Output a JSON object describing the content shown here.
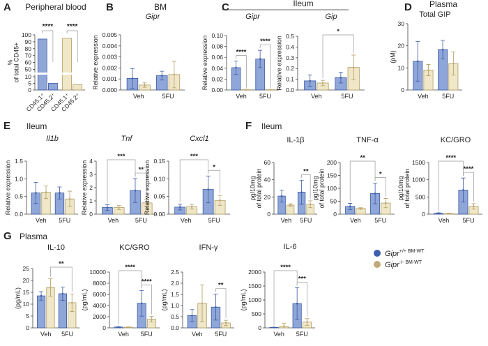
{
  "colors": {
    "wt_fill": "#8fa6d8",
    "wt_stroke": "#3b5aa3",
    "ko_fill": "#efe7c8",
    "ko_stroke": "#b19d62",
    "wt_dot": "#3f5fae",
    "ko_dot": "#bfa978"
  },
  "legend": [
    {
      "gene": "Gipr",
      "sup": "+/+",
      "suffix": " BM-WT",
      "color": "#3f5fae"
    },
    {
      "gene": "Gipr",
      "sup": "-/-",
      "suffix": " BM-WT",
      "color": "#bfa978"
    }
  ],
  "headings": [
    {
      "id": "A",
      "letter": "A",
      "text": "Peripheral blood"
    },
    {
      "id": "B",
      "letter": "B",
      "text": "BM"
    },
    {
      "id": "C",
      "letter": "C",
      "text": "Ileum"
    },
    {
      "id": "D",
      "letter": "D",
      "text": "Plasma"
    },
    {
      "id": "E",
      "letter": "E",
      "text": "Ileum"
    },
    {
      "id": "F",
      "letter": "F",
      "text": "Ileum"
    },
    {
      "id": "G",
      "letter": "G",
      "text": "Plasma"
    }
  ],
  "chart_data": [
    {
      "id": "A",
      "type": "bar",
      "title": "",
      "ylabel": "% of total CD45+",
      "ylim": [
        0,
        100
      ],
      "axis_break": [
        10,
        50
      ],
      "yticks": [
        0,
        5,
        10,
        50,
        60,
        70,
        80,
        90,
        100
      ],
      "categories": [
        "CD45.1⁺",
        "CD45.2⁺",
        "CD45.1⁺",
        "CD45.2⁺"
      ],
      "values": [
        94,
        5,
        95,
        4
      ],
      "groups": [
        "wt",
        "wt",
        "ko",
        "ko"
      ],
      "sig": [
        {
          "from": 0,
          "to": 1,
          "label": "****"
        },
        {
          "from": 2,
          "to": 3,
          "label": "****"
        }
      ]
    },
    {
      "id": "B",
      "type": "bar",
      "title": "Gipr",
      "italic": true,
      "ylabel": "Relative expression",
      "ylim": [
        0,
        0.005
      ],
      "yticks": [
        "0.000",
        "0.001",
        "0.002",
        "0.003",
        "0.004",
        "0.005"
      ],
      "categories": [
        "Veh",
        "5FU"
      ],
      "series": [
        {
          "name": "Gipr+/+ BM-WT",
          "values": [
            0.00105,
            0.0013
          ],
          "err": [
            0.0009,
            0.0004
          ]
        },
        {
          "name": "Gipr-/- BM-WT",
          "values": [
            0.00045,
            0.0014
          ],
          "err": [
            0.0002,
            0.0012
          ]
        }
      ],
      "sig": []
    },
    {
      "id": "C1",
      "type": "bar",
      "title": "Gipr",
      "italic": true,
      "ylabel": "Relative expression",
      "ylim": [
        0,
        0.1
      ],
      "yticks": [
        "0.00",
        "0.02",
        "0.04",
        "0.06",
        "0.08",
        "0.10"
      ],
      "categories": [
        "Veh",
        "5FU"
      ],
      "series": [
        {
          "name": "Gipr+/+ BM-WT",
          "values": [
            0.041,
            0.057
          ],
          "err": [
            0.012,
            0.016
          ]
        },
        {
          "name": "Gipr-/- BM-WT",
          "values": [
            0.0005,
            0.0005
          ],
          "err": [
            0,
            0
          ]
        }
      ],
      "sig": [
        {
          "from": [
            0,
            0
          ],
          "to": [
            0,
            1
          ],
          "label": "****"
        },
        {
          "from": [
            1,
            0
          ],
          "to": [
            1,
            1
          ],
          "label": "****"
        }
      ]
    },
    {
      "id": "C2",
      "type": "bar",
      "title": "Gip",
      "italic": true,
      "ylabel": "Relative expression",
      "ylim": [
        0,
        0.5
      ],
      "yticks": [
        "0.0",
        "0.1",
        "0.2",
        "0.3",
        "0.4",
        "0.5"
      ],
      "categories": [
        "Veh",
        "5FU"
      ],
      "series": [
        {
          "name": "Gipr+/+ BM-WT",
          "values": [
            0.085,
            0.115
          ],
          "err": [
            0.055,
            0.05
          ]
        },
        {
          "name": "Gipr-/- BM-WT",
          "values": [
            0.065,
            0.21
          ],
          "err": [
            0.025,
            0.115
          ]
        }
      ],
      "sig": [
        {
          "from": [
            0,
            1
          ],
          "to": [
            1,
            1
          ],
          "label": "*"
        }
      ]
    },
    {
      "id": "D",
      "type": "bar",
      "title": "Total GIP",
      "italic": false,
      "ylabel": "(pM)",
      "ylim": [
        0,
        30
      ],
      "yticks": [
        "0",
        "10",
        "20",
        "30"
      ],
      "categories": [
        "Veh",
        "5FU"
      ],
      "series": [
        {
          "name": "Gipr+/+ BM-WT",
          "values": [
            13,
            18.3
          ],
          "err": [
            9,
            4.2
          ]
        },
        {
          "name": "Gipr-/- BM-WT",
          "values": [
            9,
            12
          ],
          "err": [
            2.5,
            5.3
          ]
        }
      ],
      "sig": []
    },
    {
      "id": "E1",
      "type": "bar",
      "title": "Il1b",
      "italic": true,
      "ylabel": "Relative expression",
      "ylim": [
        0,
        1.5
      ],
      "yticks": [
        "0.0",
        "0.5",
        "1.0",
        "1.5"
      ],
      "categories": [
        "Veh",
        "5FU"
      ],
      "series": [
        {
          "name": "Gipr+/+ BM-WT",
          "values": [
            0.6,
            0.6
          ],
          "err": [
            0.3,
            0.17
          ]
        },
        {
          "name": "Gipr-/- BM-WT",
          "values": [
            0.62,
            0.43
          ],
          "err": [
            0.18,
            0.22
          ]
        }
      ],
      "sig": []
    },
    {
      "id": "E2",
      "type": "bar",
      "title": "Tnf",
      "italic": true,
      "ylabel": "Relative expression",
      "ylim": [
        0,
        4
      ],
      "yticks": [
        "0",
        "1",
        "2",
        "3",
        "4"
      ],
      "categories": [
        "Veh",
        "5FU"
      ],
      "series": [
        {
          "name": "Gipr+/+ BM-WT",
          "values": [
            0.5,
            1.78
          ],
          "err": [
            0.22,
            0.9
          ]
        },
        {
          "name": "Gipr-/- BM-WT",
          "values": [
            0.5,
            0.85
          ],
          "err": [
            0.15,
            0.45
          ]
        }
      ],
      "sig": [
        {
          "from": [
            0,
            0
          ],
          "to": [
            1,
            0
          ],
          "label": "***"
        },
        {
          "from": [
            1,
            0
          ],
          "to": [
            1,
            1
          ],
          "label": "**"
        }
      ]
    },
    {
      "id": "E3",
      "type": "bar",
      "title": "Cxcl1",
      "italic": true,
      "ylabel": "Relative expression",
      "ylim": [
        0,
        0.15
      ],
      "yticks": [
        "0.00",
        "0.05",
        "0.10",
        "0.15"
      ],
      "categories": [
        "Veh",
        "5FU"
      ],
      "series": [
        {
          "name": "Gipr+/+ BM-WT",
          "values": [
            0.02,
            0.07
          ],
          "err": [
            0.008,
            0.038
          ]
        },
        {
          "name": "Gipr-/- BM-WT",
          "values": [
            0.021,
            0.039
          ],
          "err": [
            0.007,
            0.014
          ]
        }
      ],
      "sig": [
        {
          "from": [
            0,
            0
          ],
          "to": [
            1,
            0
          ],
          "label": "***"
        },
        {
          "from": [
            1,
            0
          ],
          "to": [
            1,
            1
          ],
          "label": "*"
        }
      ]
    },
    {
      "id": "F1",
      "type": "bar",
      "title": "IL-1β",
      "italic": false,
      "ylabel": "pg/10mg of total protein",
      "ylim": [
        0,
        60
      ],
      "yticks": [
        "0",
        "20",
        "40",
        "60"
      ],
      "categories": [
        "Veh",
        "5FU"
      ],
      "series": [
        {
          "name": "Gipr+/+ BM-WT",
          "values": [
            21,
            25.5
          ],
          "err": [
            7,
            14
          ]
        },
        {
          "name": "Gipr-/- BM-WT",
          "values": [
            10.5,
            11.5
          ],
          "err": [
            1.5,
            4
          ]
        }
      ],
      "sig": [
        {
          "from": [
            1,
            0
          ],
          "to": [
            1,
            1
          ],
          "label": "**"
        }
      ]
    },
    {
      "id": "F2",
      "type": "bar",
      "title": "TNF-α",
      "italic": false,
      "ylabel": "pg/10mg of total protein",
      "ylim": [
        0,
        200
      ],
      "yticks": [
        "0",
        "50",
        "100",
        "150",
        "200"
      ],
      "categories": [
        "Veh",
        "5FU"
      ],
      "series": [
        {
          "name": "Gipr+/+ BM-WT",
          "values": [
            30,
            80
          ],
          "err": [
            12,
            40
          ]
        },
        {
          "name": "Gipr-/- BM-WT",
          "values": [
            22,
            43
          ],
          "err": [
            3,
            18
          ]
        }
      ],
      "sig": [
        {
          "from": [
            0,
            0
          ],
          "to": [
            1,
            0
          ],
          "label": "**"
        },
        {
          "from": [
            1,
            0
          ],
          "to": [
            1,
            1
          ],
          "label": "*"
        }
      ]
    },
    {
      "id": "F3",
      "type": "bar",
      "title": "KC/GRO",
      "italic": false,
      "ylabel": "pg/10mg of total protein",
      "ylim": [
        0,
        1500
      ],
      "yticks": [
        "0",
        "500",
        "1000",
        "1500"
      ],
      "categories": [
        "Veh",
        "5FU"
      ],
      "series": [
        {
          "name": "Gipr+/+ BM-WT",
          "values": [
            25,
            700
          ],
          "err": [
            15,
            350
          ]
        },
        {
          "name": "Gipr-/- BM-WT",
          "values": [
            15,
            225
          ],
          "err": [
            10,
            80
          ]
        }
      ],
      "sig": [
        {
          "from": [
            0,
            0
          ],
          "to": [
            1,
            0
          ],
          "label": "****"
        },
        {
          "from": [
            1,
            0
          ],
          "to": [
            1,
            1
          ],
          "label": "****"
        }
      ]
    },
    {
      "id": "G1",
      "type": "bar",
      "title": "IL-10",
      "italic": false,
      "ylabel": "(pg/mL)",
      "ylim": [
        0,
        25
      ],
      "yticks": [
        "0",
        "5",
        "10",
        "15",
        "20",
        "25"
      ],
      "categories": [
        "Veh",
        "5FU"
      ],
      "series": [
        {
          "name": "Gipr+/+ BM-WT",
          "values": [
            13.5,
            14.4
          ],
          "err": [
            1.8,
            2.8
          ]
        },
        {
          "name": "Gipr-/- BM-WT",
          "values": [
            17,
            10.6
          ],
          "err": [
            3.7,
            3.7
          ]
        }
      ],
      "sig": [
        {
          "from": [
            0,
            1
          ],
          "to": [
            1,
            1
          ],
          "label": "**"
        }
      ]
    },
    {
      "id": "G2",
      "type": "bar",
      "title": "KC/GRO",
      "italic": false,
      "ylabel": "(pg/mL)",
      "ylim": [
        0,
        10000
      ],
      "yticks": [
        "0",
        "2000",
        "4000",
        "6000",
        "8000",
        "10000"
      ],
      "categories": [
        "Veh",
        "5FU"
      ],
      "series": [
        {
          "name": "Gipr+/+ BM-WT",
          "values": [
            150,
            4400
          ],
          "err": [
            50,
            2300
          ]
        },
        {
          "name": "Gipr-/- BM-WT",
          "values": [
            120,
            1550
          ],
          "err": [
            50,
            500
          ]
        }
      ],
      "sig": [
        {
          "from": [
            0,
            0
          ],
          "to": [
            1,
            0
          ],
          "label": "****"
        },
        {
          "from": [
            1,
            0
          ],
          "to": [
            1,
            1
          ],
          "label": "****"
        }
      ]
    },
    {
      "id": "G3",
      "type": "bar",
      "title": "IFN-γ",
      "italic": false,
      "ylabel": "(pg/mL)",
      "ylim": [
        0,
        2.5
      ],
      "yticks": [
        "0.0",
        "0.5",
        "1.0",
        "1.5",
        "2.0",
        "2.5"
      ],
      "categories": [
        "Veh",
        "5FU"
      ],
      "series": [
        {
          "name": "Gipr+/+ BM-WT",
          "values": [
            0.55,
            0.93
          ],
          "err": [
            0.27,
            0.58
          ]
        },
        {
          "name": "Gipr-/- BM-WT",
          "values": [
            1.1,
            0.22
          ],
          "err": [
            0.82,
            0.12
          ]
        }
      ],
      "sig": [
        {
          "from": [
            1,
            0
          ],
          "to": [
            1,
            1
          ],
          "label": "**"
        }
      ]
    },
    {
      "id": "G4",
      "type": "bar",
      "title": "IL-6",
      "italic": false,
      "ylabel": "(pg/mL)",
      "ylim": [
        0,
        2000
      ],
      "yticks": [
        "0",
        "500",
        "1000",
        "1500",
        "2000"
      ],
      "categories": [
        "Veh",
        "5FU"
      ],
      "series": [
        {
          "name": "Gipr+/+ BM-WT",
          "values": [
            15,
            870
          ],
          "err": [
            5,
            570
          ]
        },
        {
          "name": "Gipr-/- BM-WT",
          "values": [
            60,
            210
          ],
          "err": [
            100,
            120
          ]
        }
      ],
      "sig": [
        {
          "from": [
            0,
            0
          ],
          "to": [
            1,
            0
          ],
          "label": "****"
        },
        {
          "from": [
            1,
            0
          ],
          "to": [
            1,
            1
          ],
          "label": "***"
        }
      ]
    }
  ]
}
